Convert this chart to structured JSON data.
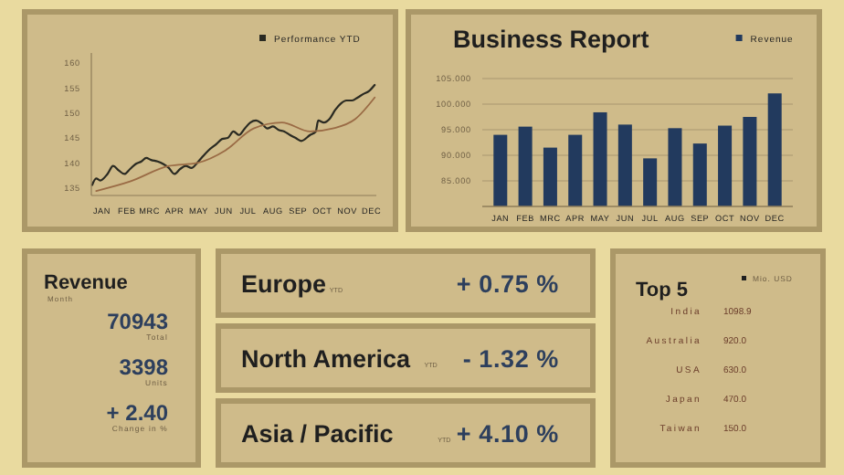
{
  "chart_data": [
    {
      "type": "line",
      "xlim": [
        "--01-02",
        "--12-21"
      ],
      "xticks": [
        {
          "value": "--01-15",
          "label": "JAN"
        },
        {
          "value": "--02-15",
          "label": "FEB"
        },
        {
          "value": "--03-15",
          "label": "MRC"
        },
        {
          "value": "--04-15",
          "label": "APR"
        },
        {
          "value": "--05-15",
          "label": "MAY"
        },
        {
          "value": "--06-15",
          "label": "JUN"
        },
        {
          "value": "--07-15",
          "label": "JUL"
        },
        {
          "value": "--08-15",
          "label": "AUG"
        },
        {
          "value": "--09-15",
          "label": "SEP"
        },
        {
          "value": "--10-15",
          "label": "OCT"
        },
        {
          "value": "--11-15",
          "label": "NOV"
        },
        {
          "value": "--12-15",
          "label": "DEC"
        }
      ],
      "ylim": [
        133.5,
        162
      ],
      "yticks": [
        135,
        140,
        145,
        150,
        155,
        160
      ],
      "legend": "top right",
      "series": [
        {
          "name": "Performance YTD",
          "color": "#2a2a22",
          "x": [
            "--01-03",
            "--01-08",
            "--01-13",
            "--01-22",
            "--01-29",
            "--02-05",
            "--02-12",
            "--02-19",
            "--02-26",
            "--03-05",
            "--03-11",
            "--03-17",
            "--03-25",
            "--04-01",
            "--04-08",
            "--04-15",
            "--04-22",
            "--04-29",
            "--05-06",
            "--05-13",
            "--05-20",
            "--05-27",
            "--06-06",
            "--06-13",
            "--06-20",
            "--06-27",
            "--07-04",
            "--07-11",
            "--07-18",
            "--07-25",
            "--08-01",
            "--08-08",
            "--08-15",
            "--08-22",
            "--08-29",
            "--09-05",
            "--09-12",
            "--09-19",
            "--09-30",
            "--10-07",
            "--10-10",
            "--10-17",
            "--10-24",
            "--10-31",
            "--11-07",
            "--11-14",
            "--11-21",
            "--11-28",
            "--12-05",
            "--12-12",
            "--12-19"
          ],
          "values": [
            135.6,
            136.9,
            136.5,
            137.8,
            139.4,
            138.5,
            137.8,
            138.8,
            139.8,
            140.3,
            141.0,
            140.6,
            140.3,
            139.8,
            139.0,
            137.8,
            138.8,
            139.4,
            139.0,
            140.0,
            141.3,
            142.5,
            143.8,
            144.8,
            145.0,
            146.3,
            145.6,
            146.9,
            148.1,
            148.5,
            147.9,
            146.9,
            147.3,
            146.6,
            146.3,
            145.6,
            145.0,
            144.4,
            145.6,
            146.3,
            148.5,
            148.1,
            148.8,
            150.6,
            151.9,
            152.5,
            152.5,
            153.1,
            153.8,
            154.4,
            155.6
          ]
        },
        {
          "type": "line",
          "color": "#9a6b45",
          "x": [
            "--01-08",
            "--02-19",
            "--04-08",
            "--05-13",
            "--06-17",
            "--07-22",
            "--08-26",
            "--09-30",
            "--10-28",
            "--11-25",
            "--12-19"
          ],
          "values": [
            134.4,
            136.3,
            139.4,
            140.0,
            142.5,
            146.9,
            148.1,
            146.3,
            146.9,
            148.8,
            153.1
          ]
        }
      ]
    },
    {
      "type": "bar",
      "title": "Business Report",
      "categories": [
        "JAN",
        "FEB",
        "MRC",
        "APR",
        "MAY",
        "JUN",
        "JUL",
        "AUG",
        "SEP",
        "OCT",
        "NOV",
        "DEC"
      ],
      "ylim": [
        80,
        105
      ],
      "yticks": [
        {
          "value": 85,
          "label": "85.000"
        },
        {
          "value": 90,
          "label": "90.000"
        },
        {
          "value": 95,
          "label": "95.000"
        },
        {
          "value": 100,
          "label": "100.000"
        },
        {
          "value": 105,
          "label": "105.000"
        }
      ],
      "grid": "y",
      "legend": "top right",
      "series": [
        {
          "name": "Revenue",
          "color": "#223a5e",
          "values": [
            94.0,
            95.6,
            91.5,
            94.0,
            98.4,
            96.0,
            89.4,
            95.3,
            92.3,
            95.8,
            97.5,
            102.1
          ]
        }
      ]
    },
    {
      "type": "other",
      "title": "Revenue",
      "subtitle": "Month",
      "annotations": [
        "70943",
        "Total",
        "3398",
        "Units",
        "+ 2.40",
        "Change in %"
      ]
    },
    {
      "type": "other",
      "title": "Europe",
      "subtitle": "YTD",
      "annotations": [
        "+ 0.75 %"
      ]
    },
    {
      "type": "other",
      "title": "North America",
      "subtitle": "YTD",
      "annotations": [
        "- 1.32 %"
      ]
    },
    {
      "type": "other",
      "title": "Asia / Pacific",
      "subtitle": "YTD",
      "annotations": [
        "+ 4.10 %"
      ]
    },
    {
      "type": "other",
      "title": "Top 5",
      "annotations": [
        "Mio. USD",
        "India",
        "1098.9",
        "Australia",
        "920.0",
        "USA",
        "630.0",
        "Japan",
        "470.0",
        "Taiwan",
        "150.0"
      ]
    }
  ]
}
